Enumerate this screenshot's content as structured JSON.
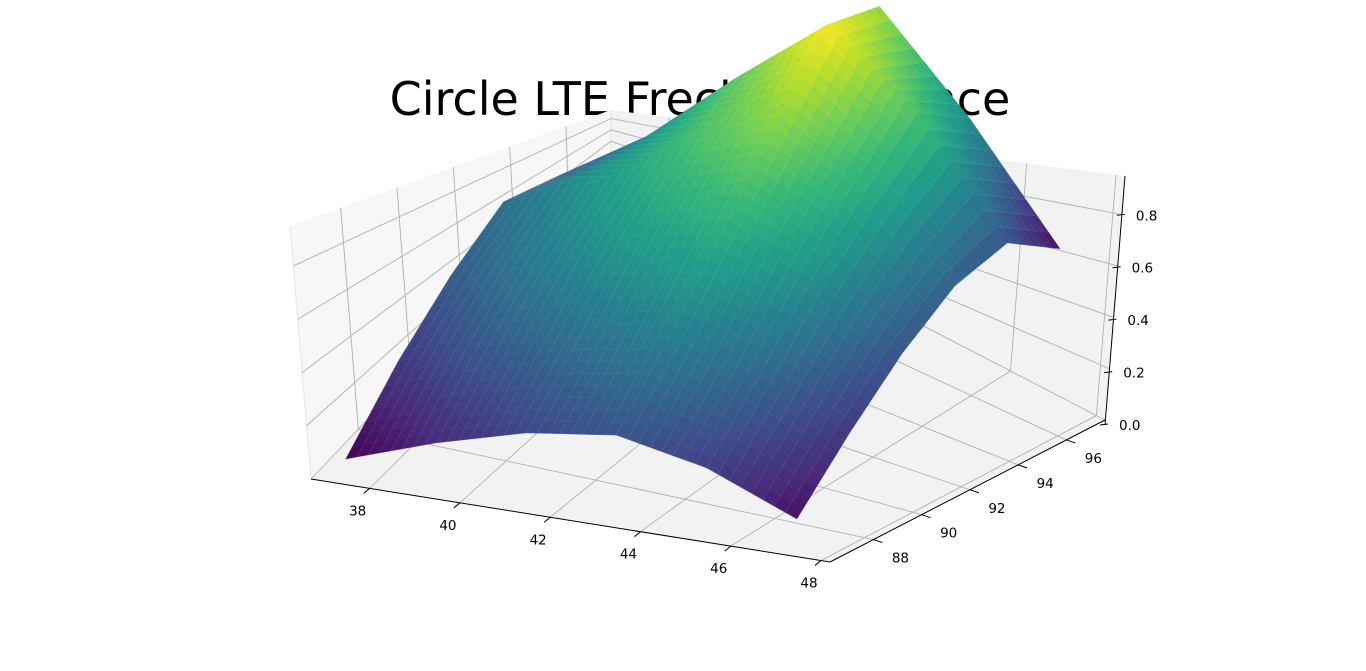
{
  "chart_data": {
    "type": "surface3d",
    "title": "Circle LTE Frechet Distance",
    "xlabel": "",
    "ylabel": "",
    "zlabel": "",
    "colormap": "viridis",
    "colormap_stops": [
      "#440154",
      "#482878",
      "#3e4989",
      "#31688e",
      "#26828e",
      "#1f9e89",
      "#35b779",
      "#6ece58",
      "#b5de2b",
      "#fde725"
    ],
    "x_ticks": [
      38,
      40,
      42,
      44,
      46,
      48
    ],
    "y_ticks": [
      88,
      90,
      92,
      94,
      96
    ],
    "z_ticks": [
      "0.0",
      "0.2",
      "0.4",
      "0.6",
      "0.8"
    ],
    "x_range": [
      36.7,
      48.2
    ],
    "y_range": [
      86.2,
      97.6
    ],
    "z_range": [
      0.0,
      0.95
    ],
    "x": [
      37,
      39,
      41,
      43,
      45,
      47
    ],
    "y": [
      87,
      89,
      91,
      93,
      95,
      97
    ],
    "z": [
      [
        0.0,
        0.1,
        0.18,
        0.22,
        0.16,
        0.04
      ],
      [
        0.14,
        0.24,
        0.31,
        0.36,
        0.28,
        0.14
      ],
      [
        0.24,
        0.36,
        0.46,
        0.52,
        0.42,
        0.22
      ],
      [
        0.3,
        0.44,
        0.58,
        0.68,
        0.52,
        0.26
      ],
      [
        0.2,
        0.38,
        0.62,
        0.84,
        0.6,
        0.22
      ],
      [
        0.02,
        0.22,
        0.46,
        0.72,
        0.4,
        0.02
      ]
    ],
    "grid": true,
    "background": "#ffffff",
    "pane_colors": [
      "#f2f2f2",
      "#f7f7f7",
      "#f2f2f2"
    ],
    "grid_color": "#b0b0b0"
  }
}
